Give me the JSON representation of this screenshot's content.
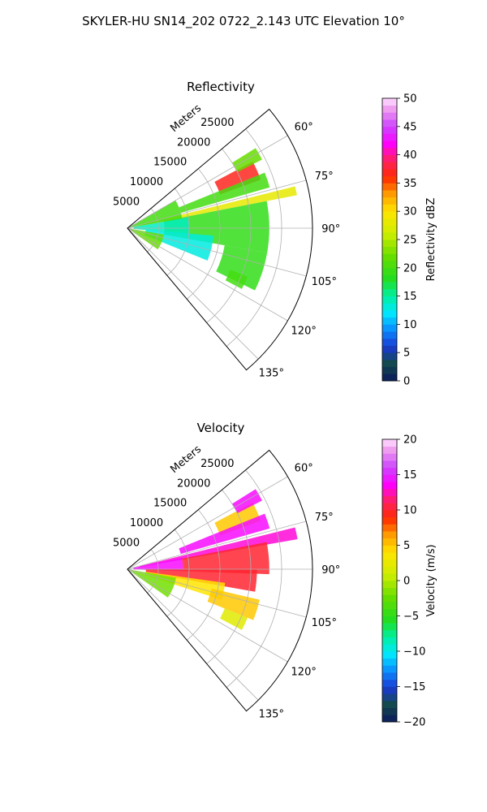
{
  "figure": {
    "title": "SKYLER-HU  SN14_202  0722_2.143 UTC Elevation 10°"
  },
  "chart_data": [
    {
      "type": "heatmap",
      "projection": "polar-sector",
      "title": "Reflectivity",
      "radial_axis_label": "Meters",
      "radial_range": [
        0,
        30000
      ],
      "radial_ticks": [
        5000,
        10000,
        15000,
        20000,
        25000
      ],
      "radial_tick_labels": [
        "5000",
        "10000",
        "15000",
        "20000",
        "25000"
      ],
      "angular_range_deg": [
        50,
        140
      ],
      "angular_ticks_deg": [
        60,
        75,
        90,
        105,
        120,
        135
      ],
      "angular_tick_labels": [
        "60°",
        "75°",
        "90°",
        "105°",
        "120°",
        "135°"
      ],
      "grid": true,
      "colorbar": {
        "label": "Reflectivity dBZ",
        "range": [
          0,
          50
        ],
        "ticks": [
          0,
          5,
          10,
          15,
          20,
          25,
          30,
          35,
          40,
          45,
          50
        ],
        "tick_labels": [
          "0",
          "5",
          "10",
          "15",
          "20",
          "25",
          "30",
          "35",
          "40",
          "45",
          "50"
        ],
        "colormap": "pyart_HomeyerRainbow"
      },
      "echo_regions": [
        {
          "az": [
            62,
            70
          ],
          "r": [
            16000,
            23000
          ],
          "value": 37
        },
        {
          "az": [
            58,
            63
          ],
          "r": [
            20000,
            24500
          ],
          "value": 22
        },
        {
          "az": [
            68,
            74
          ],
          "r": [
            9000,
            24000
          ],
          "value": 20
        },
        {
          "az": [
            76,
            79
          ],
          "r": [
            2000,
            28000
          ],
          "value": 28
        },
        {
          "az": [
            79,
            100
          ],
          "r": [
            6000,
            23000
          ],
          "value": 19
        },
        {
          "az": [
            80,
            96
          ],
          "r": [
            1000,
            10000
          ],
          "value": 14
        },
        {
          "az": [
            95,
            112
          ],
          "r": [
            3000,
            14000
          ],
          "value": 13
        },
        {
          "az": [
            100,
            116
          ],
          "r": [
            16000,
            23000
          ],
          "value": 19
        },
        {
          "az": [
            112,
            118
          ],
          "r": [
            18000,
            21000
          ],
          "value": 20
        },
        {
          "az": [
            60,
            80
          ],
          "r": [
            0,
            9000
          ],
          "value": 20
        },
        {
          "az": [
            100,
            125
          ],
          "r": [
            0,
            6000
          ],
          "value": 22
        }
      ]
    },
    {
      "type": "heatmap",
      "projection": "polar-sector",
      "title": "Velocity",
      "radial_axis_label": "Meters",
      "radial_range": [
        0,
        30000
      ],
      "radial_ticks": [
        5000,
        10000,
        15000,
        20000,
        25000
      ],
      "radial_tick_labels": [
        "5000",
        "10000",
        "15000",
        "20000",
        "25000"
      ],
      "angular_range_deg": [
        50,
        140
      ],
      "angular_ticks_deg": [
        60,
        75,
        90,
        105,
        120,
        135
      ],
      "angular_tick_labels": [
        "60°",
        "75°",
        "90°",
        "105°",
        "120°",
        "135°"
      ],
      "grid": true,
      "colorbar": {
        "label": "Velocity (m/s)",
        "range": [
          -20,
          20
        ],
        "ticks": [
          -20,
          -15,
          -10,
          -5,
          0,
          5,
          10,
          15,
          20
        ],
        "tick_labels": [
          "−20",
          "−15",
          "−10",
          "−5",
          "0",
          "5",
          "10",
          "15",
          "20"
        ],
        "colormap": "pyart_BuDRd18"
      },
      "echo_regions": [
        {
          "az": [
            62,
            70
          ],
          "r": [
            16000,
            23000
          ],
          "value": 5
        },
        {
          "az": [
            58,
            63
          ],
          "r": [
            20000,
            24500
          ],
          "value": 14
        },
        {
          "az": [
            68,
            74
          ],
          "r": [
            9000,
            24000
          ],
          "value": 14
        },
        {
          "az": [
            76,
            80
          ],
          "r": [
            2000,
            28000
          ],
          "value": 13
        },
        {
          "az": [
            79,
            92
          ],
          "r": [
            9000,
            23000
          ],
          "value": 10
        },
        {
          "az": [
            78,
            92
          ],
          "r": [
            1000,
            9000
          ],
          "value": 14
        },
        {
          "az": [
            90,
            100
          ],
          "r": [
            3000,
            21000
          ],
          "value": 10
        },
        {
          "az": [
            98,
            108
          ],
          "r": [
            3000,
            16000
          ],
          "value": 4
        },
        {
          "az": [
            103,
            112
          ],
          "r": [
            14000,
            22000
          ],
          "value": 5
        },
        {
          "az": [
            112,
            118
          ],
          "r": [
            17000,
            21000
          ],
          "value": 2
        },
        {
          "az": [
            100,
            125
          ],
          "r": [
            0,
            8000
          ],
          "value": -2
        }
      ]
    }
  ]
}
